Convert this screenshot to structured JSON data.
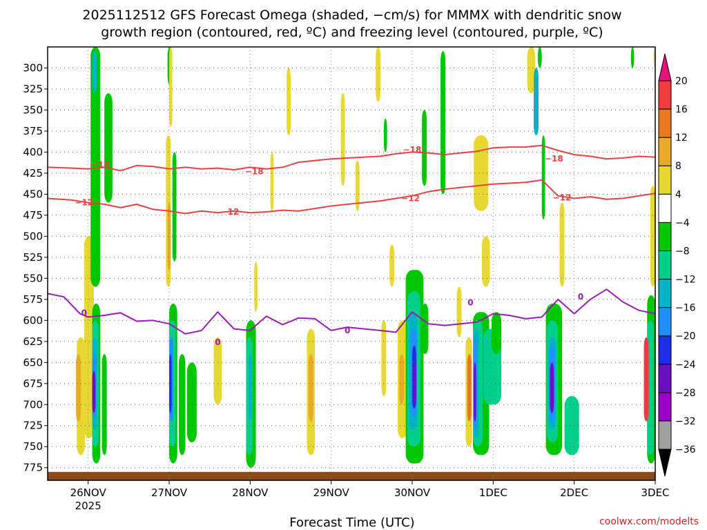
{
  "chart_data": {
    "type": "heatmap",
    "title_lines": [
      "2025112512 GFS Forecast Omega (shaded, −cm/s) for MMMX with dendritic snow",
      "growth region (contoured, red, ºC) and freezing level (contoured, purple, ºC)"
    ],
    "xlabel": "Forecast Time (UTC)",
    "ylabel": "",
    "x_ticks": [
      "26NOV",
      "27NOV",
      "28NOV",
      "29NOV",
      "30NOV",
      "1DEC",
      "2DEC",
      "3DEC"
    ],
    "x_year_label": "2025",
    "x_range_days": [
      -0.5,
      7.0
    ],
    "y_ticks": [
      300,
      325,
      350,
      375,
      400,
      425,
      450,
      475,
      500,
      525,
      550,
      575,
      600,
      625,
      650,
      675,
      700,
      725,
      750,
      775
    ],
    "y_range_hpa": [
      275,
      790
    ],
    "colorbar": {
      "levels": [
        -36,
        -32,
        -28,
        -24,
        -20,
        -16,
        -12,
        -8,
        -4,
        4,
        8,
        12,
        16,
        20
      ],
      "tick_labels": [
        "20",
        "16",
        "12",
        "8",
        "4",
        "−4",
        "−8",
        "−12",
        "−16",
        "−20",
        "−24",
        "−28",
        "−32",
        "−36"
      ],
      "colors": [
        "#000000",
        "#a0a0a0",
        "#9a00c8",
        "#6a10c0",
        "#1d2ee6",
        "#1e90ff",
        "#00b4c8",
        "#00d08c",
        "#00c800",
        "#ffffff",
        "#e8d832",
        "#e8aa28",
        "#e87820",
        "#f03c3c",
        "#e6147a"
      ]
    },
    "series": [
      {
        "name": "-18",
        "color": "#e84040",
        "x": [
          -0.5,
          -0.2,
          0.0,
          0.2,
          0.4,
          0.6,
          0.8,
          1.0,
          1.2,
          1.4,
          1.6,
          1.8,
          2.0,
          2.2,
          2.4,
          2.6,
          2.8,
          3.0,
          3.2,
          3.4,
          3.6,
          3.8,
          4.0,
          4.2,
          4.4,
          4.6,
          4.8,
          5.0,
          5.2,
          5.4,
          5.6,
          5.8,
          6.0,
          6.2,
          6.4,
          6.6,
          6.8,
          7.0
        ],
        "values": [
          418,
          419,
          420,
          418,
          422,
          416,
          417,
          420,
          418,
          420,
          419,
          421,
          418,
          420,
          418,
          412,
          410,
          408,
          407,
          406,
          405,
          402,
          400,
          401,
          403,
          401,
          399,
          395,
          394,
          394,
          392,
          398,
          403,
          405,
          408,
          407,
          405,
          406
        ]
      },
      {
        "name": "-12",
        "color": "#e84040",
        "x": [
          -0.5,
          -0.2,
          0.0,
          0.2,
          0.4,
          0.6,
          0.8,
          1.0,
          1.2,
          1.4,
          1.6,
          1.8,
          2.0,
          2.2,
          2.4,
          2.6,
          2.8,
          3.0,
          3.2,
          3.4,
          3.6,
          3.8,
          4.0,
          4.2,
          4.4,
          4.6,
          4.8,
          5.0,
          5.2,
          5.4,
          5.6,
          5.8,
          6.0,
          6.2,
          6.4,
          6.6,
          6.8,
          7.0
        ],
        "values": [
          455,
          457,
          460,
          462,
          466,
          462,
          468,
          470,
          473,
          470,
          472,
          470,
          472,
          471,
          469,
          470,
          467,
          464,
          462,
          460,
          458,
          455,
          452,
          447,
          444,
          442,
          440,
          438,
          437,
          436,
          433,
          452,
          455,
          453,
          456,
          455,
          452,
          449
        ]
      },
      {
        "name": "0",
        "color": "#9a1ab4",
        "x": [
          -0.5,
          -0.3,
          -0.1,
          0.0,
          0.2,
          0.4,
          0.6,
          0.8,
          1.0,
          1.2,
          1.4,
          1.6,
          1.8,
          2.0,
          2.2,
          2.4,
          2.6,
          2.8,
          3.0,
          3.2,
          3.4,
          3.6,
          3.8,
          4.0,
          4.2,
          4.4,
          4.6,
          4.8,
          5.0,
          5.2,
          5.4,
          5.6,
          5.8,
          6.0,
          6.2,
          6.4,
          6.6,
          6.8,
          7.0
        ],
        "values": [
          568,
          572,
          592,
          596,
          594,
          591,
          601,
          600,
          604,
          616,
          612,
          590,
          610,
          612,
          595,
          605,
          597,
          598,
          612,
          608,
          610,
          612,
          614,
          590,
          604,
          606,
          604,
          602,
          592,
          594,
          598,
          596,
          575,
          592,
          575,
          563,
          578,
          588,
          592
        ]
      }
    ],
    "contour_labels": [
      {
        "text": "−18",
        "x": 0.15,
        "y": 415,
        "color": "#e84040"
      },
      {
        "text": "−18",
        "x": 2.05,
        "y": 423,
        "color": "#e84040"
      },
      {
        "text": "−18",
        "x": 4.0,
        "y": 397,
        "color": "#e84040"
      },
      {
        "text": "−18",
        "x": 5.75,
        "y": 408,
        "color": "#e84040"
      },
      {
        "text": "−12",
        "x": -0.05,
        "y": 460,
        "color": "#e84040"
      },
      {
        "text": "−12",
        "x": 1.75,
        "y": 471,
        "color": "#e84040"
      },
      {
        "text": "−12",
        "x": 3.98,
        "y": 455,
        "color": "#e84040"
      },
      {
        "text": "−12",
        "x": 5.85,
        "y": 454,
        "color": "#e84040"
      },
      {
        "text": "0",
        "x": -0.05,
        "y": 591,
        "color": "#9a1ab4"
      },
      {
        "text": "0",
        "x": 1.6,
        "y": 626,
        "color": "#9a1ab4"
      },
      {
        "text": "0",
        "x": 3.2,
        "y": 612,
        "color": "#9a1ab4"
      },
      {
        "text": "0",
        "x": 4.72,
        "y": 579,
        "color": "#9a1ab4"
      },
      {
        "text": "0",
        "x": 6.08,
        "y": 572,
        "color": "#9a1ab4"
      }
    ],
    "shaded_regions": [
      {
        "x": -0.05,
        "w": 0.12,
        "ytop": 500,
        "ybot": 740,
        "c": "#e8d832"
      },
      {
        "x": -0.14,
        "w": 0.1,
        "ytop": 620,
        "ybot": 760,
        "c": "#e8d832"
      },
      {
        "x": -0.15,
        "w": 0.06,
        "ytop": 640,
        "ybot": 720,
        "c": "#e8aa28"
      },
      {
        "x": 0.03,
        "w": 0.12,
        "ytop": 275,
        "ybot": 560,
        "c": "#00c800"
      },
      {
        "x": 0.2,
        "w": 0.1,
        "ytop": 330,
        "ybot": 460,
        "c": "#00c800"
      },
      {
        "x": 0.05,
        "w": 0.1,
        "ytop": 580,
        "ybot": 770,
        "c": "#00c800"
      },
      {
        "x": 0.05,
        "w": 0.08,
        "ytop": 600,
        "ybot": 750,
        "c": "#00d08c"
      },
      {
        "x": 0.05,
        "w": 0.06,
        "ytop": 620,
        "ybot": 730,
        "c": "#00b4c8"
      },
      {
        "x": 0.05,
        "w": 0.05,
        "ytop": 640,
        "ybot": 715,
        "c": "#1e90ff"
      },
      {
        "x": 0.05,
        "w": 0.04,
        "ytop": 660,
        "ybot": 710,
        "c": "#6a10c0"
      },
      {
        "x": 0.05,
        "w": 0.06,
        "ytop": 280,
        "ybot": 330,
        "c": "#00b4c8"
      },
      {
        "x": 0.17,
        "w": 0.06,
        "ytop": 640,
        "ybot": 760,
        "c": "#00c800"
      },
      {
        "x": 1.0,
        "w": 0.1,
        "ytop": 580,
        "ybot": 770,
        "c": "#00c800"
      },
      {
        "x": 1.0,
        "w": 0.08,
        "ytop": 600,
        "ybot": 750,
        "c": "#00d08c"
      },
      {
        "x": 1.0,
        "w": 0.05,
        "ytop": 620,
        "ybot": 720,
        "c": "#1e90ff"
      },
      {
        "x": 1.0,
        "w": 0.03,
        "ytop": 640,
        "ybot": 710,
        "c": "#1d2ee6"
      },
      {
        "x": 1.12,
        "w": 0.08,
        "ytop": 640,
        "ybot": 760,
        "c": "#00c800"
      },
      {
        "x": 1.22,
        "w": 0.12,
        "ytop": 650,
        "ybot": 745,
        "c": "#00c800"
      },
      {
        "x": 0.96,
        "w": 0.06,
        "ytop": 380,
        "ybot": 560,
        "c": "#e8d832"
      },
      {
        "x": 0.98,
        "w": 0.04,
        "ytop": 460,
        "ybot": 540,
        "c": "#e8aa28"
      },
      {
        "x": 1.04,
        "w": 0.05,
        "ytop": 400,
        "ybot": 530,
        "c": "#00c800"
      },
      {
        "x": 0.98,
        "w": 0.05,
        "ytop": 275,
        "ybot": 320,
        "c": "#00c800"
      },
      {
        "x": 1.0,
        "w": 0.04,
        "ytop": 275,
        "ybot": 370,
        "c": "#e8d832"
      },
      {
        "x": 1.55,
        "w": 0.1,
        "ytop": 620,
        "ybot": 700,
        "c": "#e8d832"
      },
      {
        "x": 1.95,
        "w": 0.12,
        "ytop": 600,
        "ybot": 775,
        "c": "#00c800"
      },
      {
        "x": 1.95,
        "w": 0.08,
        "ytop": 620,
        "ybot": 760,
        "c": "#00d08c"
      },
      {
        "x": 1.98,
        "w": 0.04,
        "ytop": 640,
        "ybot": 720,
        "c": "#00b4c8"
      },
      {
        "x": 2.05,
        "w": 0.04,
        "ytop": 530,
        "ybot": 590,
        "c": "#e8d832"
      },
      {
        "x": 2.25,
        "w": 0.04,
        "ytop": 400,
        "ybot": 470,
        "c": "#e8d832"
      },
      {
        "x": 2.7,
        "w": 0.1,
        "ytop": 610,
        "ybot": 760,
        "c": "#e8d832"
      },
      {
        "x": 2.72,
        "w": 0.06,
        "ytop": 640,
        "ybot": 720,
        "c": "#e8aa28"
      },
      {
        "x": 2.45,
        "w": 0.05,
        "ytop": 300,
        "ybot": 380,
        "c": "#e8d832"
      },
      {
        "x": 3.12,
        "w": 0.05,
        "ytop": 330,
        "ybot": 440,
        "c": "#e8d832"
      },
      {
        "x": 3.3,
        "w": 0.05,
        "ytop": 410,
        "ybot": 470,
        "c": "#e8d832"
      },
      {
        "x": 3.55,
        "w": 0.06,
        "ytop": 275,
        "ybot": 340,
        "c": "#e8d832"
      },
      {
        "x": 3.65,
        "w": 0.04,
        "ytop": 360,
        "ybot": 400,
        "c": "#00c800"
      },
      {
        "x": 3.62,
        "w": 0.06,
        "ytop": 600,
        "ybot": 690,
        "c": "#e8d832"
      },
      {
        "x": 3.72,
        "w": 0.06,
        "ytop": 510,
        "ybot": 560,
        "c": "#e8d832"
      },
      {
        "x": 3.82,
        "w": 0.12,
        "ytop": 600,
        "ybot": 740,
        "c": "#e8d832"
      },
      {
        "x": 3.84,
        "w": 0.06,
        "ytop": 640,
        "ybot": 700,
        "c": "#e8aa28"
      },
      {
        "x": 3.92,
        "w": 0.22,
        "ytop": 540,
        "ybot": 770,
        "c": "#00c800"
      },
      {
        "x": 3.94,
        "w": 0.16,
        "ytop": 565,
        "ybot": 750,
        "c": "#00d08c"
      },
      {
        "x": 3.96,
        "w": 0.1,
        "ytop": 590,
        "ybot": 730,
        "c": "#00b4c8"
      },
      {
        "x": 3.98,
        "w": 0.08,
        "ytop": 610,
        "ybot": 715,
        "c": "#1e90ff"
      },
      {
        "x": 4.0,
        "w": 0.05,
        "ytop": 630,
        "ybot": 705,
        "c": "#1d2ee6"
      },
      {
        "x": 4.01,
        "w": 0.04,
        "ytop": 650,
        "ybot": 700,
        "c": "#6a10c0"
      },
      {
        "x": 4.12,
        "w": 0.08,
        "ytop": 580,
        "ybot": 640,
        "c": "#00c800"
      },
      {
        "x": 4.12,
        "w": 0.06,
        "ytop": 350,
        "ybot": 440,
        "c": "#00c800"
      },
      {
        "x": 4.35,
        "w": 0.06,
        "ytop": 280,
        "ybot": 450,
        "c": "#00c800"
      },
      {
        "x": 4.55,
        "w": 0.06,
        "ytop": 560,
        "ybot": 620,
        "c": "#e8d832"
      },
      {
        "x": 4.75,
        "w": 0.2,
        "ytop": 590,
        "ybot": 760,
        "c": "#00c800"
      },
      {
        "x": 4.75,
        "w": 0.12,
        "ytop": 600,
        "ybot": 750,
        "c": "#00d08c"
      },
      {
        "x": 4.76,
        "w": 0.06,
        "ytop": 610,
        "ybot": 740,
        "c": "#00b4c8"
      },
      {
        "x": 4.76,
        "w": 0.04,
        "ytop": 620,
        "ybot": 730,
        "c": "#1e90ff"
      },
      {
        "x": 4.76,
        "w": 0.03,
        "ytop": 650,
        "ybot": 720,
        "c": "#6a10c0"
      },
      {
        "x": 4.66,
        "w": 0.08,
        "ytop": 620,
        "ybot": 750,
        "c": "#e8d832"
      },
      {
        "x": 4.68,
        "w": 0.05,
        "ytop": 640,
        "ybot": 720,
        "c": "#e87820"
      },
      {
        "x": 4.88,
        "w": 0.22,
        "ytop": 610,
        "ybot": 700,
        "c": "#00d08c"
      },
      {
        "x": 4.98,
        "w": 0.12,
        "ytop": 590,
        "ybot": 640,
        "c": "#00c800"
      },
      {
        "x": 4.76,
        "w": 0.18,
        "ytop": 380,
        "ybot": 470,
        "c": "#e8d832"
      },
      {
        "x": 4.86,
        "w": 0.1,
        "ytop": 500,
        "ybot": 560,
        "c": "#e8d832"
      },
      {
        "x": 5.65,
        "w": 0.2,
        "ytop": 580,
        "ybot": 760,
        "c": "#00c800"
      },
      {
        "x": 5.66,
        "w": 0.14,
        "ytop": 600,
        "ybot": 745,
        "c": "#00d08c"
      },
      {
        "x": 5.68,
        "w": 0.1,
        "ytop": 620,
        "ybot": 730,
        "c": "#00b4c8"
      },
      {
        "x": 5.69,
        "w": 0.07,
        "ytop": 630,
        "ybot": 720,
        "c": "#1e90ff"
      },
      {
        "x": 5.7,
        "w": 0.05,
        "ytop": 650,
        "ybot": 710,
        "c": "#6a10c0"
      },
      {
        "x": 5.6,
        "w": 0.04,
        "ytop": 380,
        "ybot": 480,
        "c": "#00c800"
      },
      {
        "x": 5.55,
        "w": 0.05,
        "ytop": 275,
        "ybot": 300,
        "c": "#00c800"
      },
      {
        "x": 5.42,
        "w": 0.1,
        "ytop": 275,
        "ybot": 330,
        "c": "#e8d832"
      },
      {
        "x": 5.5,
        "w": 0.06,
        "ytop": 300,
        "ybot": 380,
        "c": "#00b4c8"
      },
      {
        "x": 5.82,
        "w": 0.06,
        "ytop": 460,
        "ybot": 560,
        "c": "#e8d832"
      },
      {
        "x": 5.88,
        "w": 0.18,
        "ytop": 690,
        "ybot": 760,
        "c": "#00d08c"
      },
      {
        "x": 6.7,
        "w": 0.04,
        "ytop": 275,
        "ybot": 300,
        "c": "#00c800"
      },
      {
        "x": 6.9,
        "w": 0.1,
        "ytop": 570,
        "ybot": 770,
        "c": "#00c800"
      },
      {
        "x": 6.9,
        "w": 0.08,
        "ytop": 600,
        "ybot": 760,
        "c": "#00d08c"
      },
      {
        "x": 6.86,
        "w": 0.06,
        "ytop": 620,
        "ybot": 720,
        "c": "#f03c3c"
      },
      {
        "x": 6.98,
        "w": 0.04,
        "ytop": 275,
        "ybot": 300,
        "c": "#e8d832"
      },
      {
        "x": 6.94,
        "w": 0.06,
        "ytop": 440,
        "ybot": 560,
        "c": "#e8d832"
      }
    ],
    "credit": "coolwx.com/modelts"
  }
}
